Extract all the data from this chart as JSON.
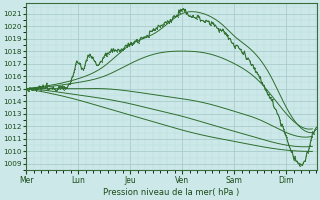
{
  "xlabel": "Pression niveau de la mer( hPa )",
  "ylim": [
    1008.5,
    1021.8
  ],
  "yticks": [
    1009,
    1010,
    1011,
    1012,
    1013,
    1014,
    1015,
    1016,
    1017,
    1018,
    1019,
    1020,
    1021
  ],
  "xtick_labels": [
    "Mer",
    "Lun",
    "Jeu",
    "Ven",
    "Sam",
    "Dim"
  ],
  "background_color": "#cce8e8",
  "grid_major_color": "#aacccc",
  "grid_minor_color": "#bbdddd",
  "line_color": "#2d6e2d",
  "xlim_max": 5.58
}
